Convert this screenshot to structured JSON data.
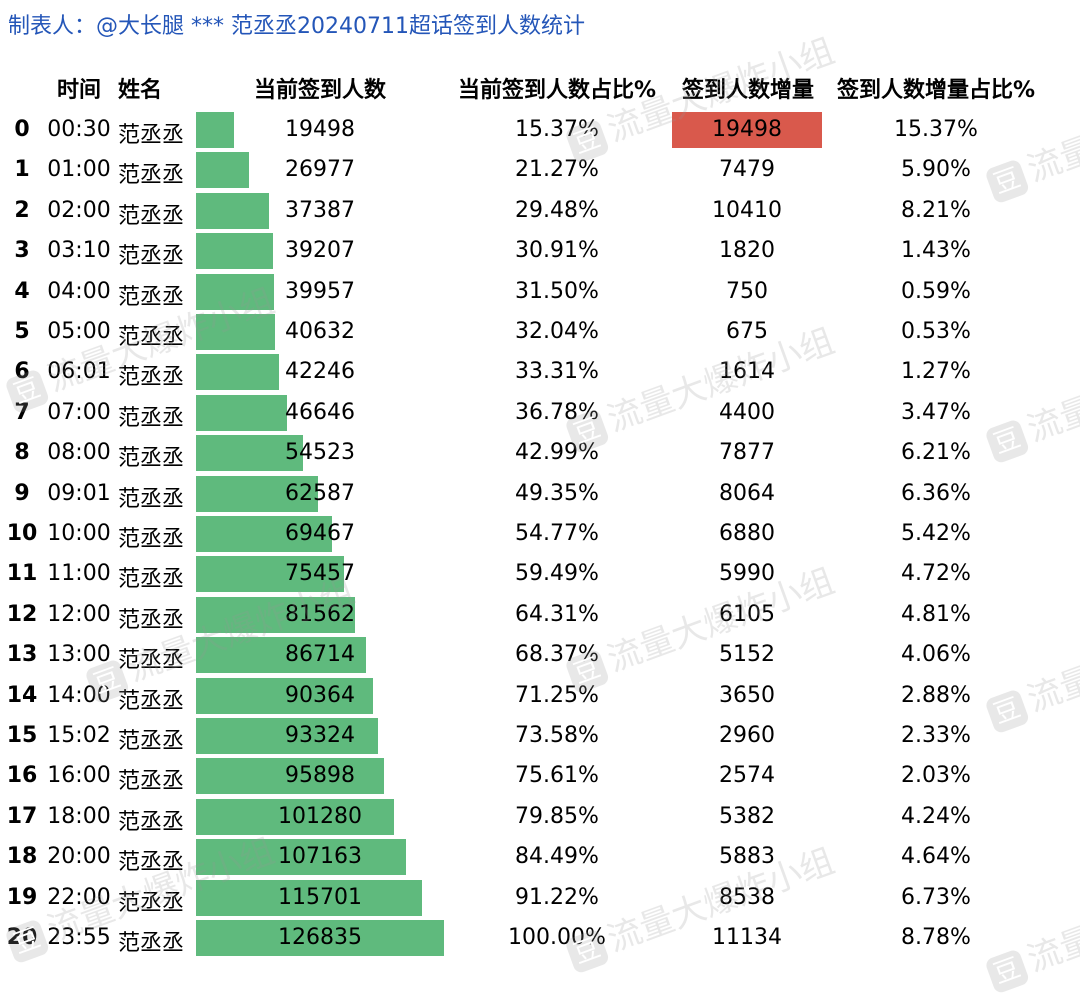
{
  "title": "制表人：@大长腿 *** 范丞丞20240711超话签到人数统计",
  "headers": {
    "time": "时间",
    "name": "姓名",
    "current": "当前签到人数",
    "current_pct": "当前签到人数占比%",
    "increase": "签到人数增量",
    "increase_pct": "签到人数增量占比%"
  },
  "watermark": {
    "text": "流量大爆炸小组",
    "icon_char": "豆",
    "icon": "douban-icon"
  },
  "colors": {
    "bar": "#5fba7d",
    "highlight": "#d9594c",
    "title": "#2456b8"
  },
  "rows": [
    {
      "idx": "0",
      "time": "00:30",
      "name": "范丞丞",
      "current": "19498",
      "current_pct": "15.37%",
      "increase": "19498",
      "increase_pct": "15.37%"
    },
    {
      "idx": "1",
      "time": "01:00",
      "name": "范丞丞",
      "current": "26977",
      "current_pct": "21.27%",
      "increase": "7479",
      "increase_pct": "5.90%"
    },
    {
      "idx": "2",
      "time": "02:00",
      "name": "范丞丞",
      "current": "37387",
      "current_pct": "29.48%",
      "increase": "10410",
      "increase_pct": "8.21%"
    },
    {
      "idx": "3",
      "time": "03:10",
      "name": "范丞丞",
      "current": "39207",
      "current_pct": "30.91%",
      "increase": "1820",
      "increase_pct": "1.43%"
    },
    {
      "idx": "4",
      "time": "04:00",
      "name": "范丞丞",
      "current": "39957",
      "current_pct": "31.50%",
      "increase": "750",
      "increase_pct": "0.59%"
    },
    {
      "idx": "5",
      "time": "05:00",
      "name": "范丞丞",
      "current": "40632",
      "current_pct": "32.04%",
      "increase": "675",
      "increase_pct": "0.53%"
    },
    {
      "idx": "6",
      "time": "06:01",
      "name": "范丞丞",
      "current": "42246",
      "current_pct": "33.31%",
      "increase": "1614",
      "increase_pct": "1.27%"
    },
    {
      "idx": "7",
      "time": "07:00",
      "name": "范丞丞",
      "current": "46646",
      "current_pct": "36.78%",
      "increase": "4400",
      "increase_pct": "3.47%"
    },
    {
      "idx": "8",
      "time": "08:00",
      "name": "范丞丞",
      "current": "54523",
      "current_pct": "42.99%",
      "increase": "7877",
      "increase_pct": "6.21%"
    },
    {
      "idx": "9",
      "time": "09:01",
      "name": "范丞丞",
      "current": "62587",
      "current_pct": "49.35%",
      "increase": "8064",
      "increase_pct": "6.36%"
    },
    {
      "idx": "10",
      "time": "10:00",
      "name": "范丞丞",
      "current": "69467",
      "current_pct": "54.77%",
      "increase": "6880",
      "increase_pct": "5.42%"
    },
    {
      "idx": "11",
      "time": "11:00",
      "name": "范丞丞",
      "current": "75457",
      "current_pct": "59.49%",
      "increase": "5990",
      "increase_pct": "4.72%"
    },
    {
      "idx": "12",
      "time": "12:00",
      "name": "范丞丞",
      "current": "81562",
      "current_pct": "64.31%",
      "increase": "6105",
      "increase_pct": "4.81%"
    },
    {
      "idx": "13",
      "time": "13:00",
      "name": "范丞丞",
      "current": "86714",
      "current_pct": "68.37%",
      "increase": "5152",
      "increase_pct": "4.06%"
    },
    {
      "idx": "14",
      "time": "14:00",
      "name": "范丞丞",
      "current": "90364",
      "current_pct": "71.25%",
      "increase": "3650",
      "increase_pct": "2.88%"
    },
    {
      "idx": "15",
      "time": "15:02",
      "name": "范丞丞",
      "current": "93324",
      "current_pct": "73.58%",
      "increase": "2960",
      "increase_pct": "2.33%"
    },
    {
      "idx": "16",
      "time": "16:00",
      "name": "范丞丞",
      "current": "95898",
      "current_pct": "75.61%",
      "increase": "2574",
      "increase_pct": "2.03%"
    },
    {
      "idx": "17",
      "time": "18:00",
      "name": "范丞丞",
      "current": "101280",
      "current_pct": "79.85%",
      "increase": "5382",
      "increase_pct": "4.24%"
    },
    {
      "idx": "18",
      "time": "20:00",
      "name": "范丞丞",
      "current": "107163",
      "current_pct": "84.49%",
      "increase": "5883",
      "increase_pct": "4.64%"
    },
    {
      "idx": "19",
      "time": "22:00",
      "name": "范丞丞",
      "current": "115701",
      "current_pct": "91.22%",
      "increase": "8538",
      "increase_pct": "6.73%"
    },
    {
      "idx": "20",
      "time": "23:55",
      "name": "范丞丞",
      "current": "126835",
      "current_pct": "100.00%",
      "increase": "11134",
      "increase_pct": "8.78%"
    }
  ],
  "chart_data": {
    "type": "table",
    "title": "制表人：@大长腿 *** 范丞丞20240711超话签到人数统计",
    "categories": [
      "00:30",
      "01:00",
      "02:00",
      "03:10",
      "04:00",
      "05:00",
      "06:01",
      "07:00",
      "08:00",
      "09:01",
      "10:00",
      "11:00",
      "12:00",
      "13:00",
      "14:00",
      "15:02",
      "16:00",
      "18:00",
      "20:00",
      "22:00",
      "23:55"
    ],
    "series": [
      {
        "name": "当前签到人数",
        "values": [
          19498,
          26977,
          37387,
          39207,
          39957,
          40632,
          42246,
          46646,
          54523,
          62587,
          69467,
          75457,
          81562,
          86714,
          90364,
          93324,
          95898,
          101280,
          107163,
          115701,
          126835
        ]
      },
      {
        "name": "当前签到人数占比%",
        "values": [
          15.37,
          21.27,
          29.48,
          30.91,
          31.5,
          32.04,
          33.31,
          36.78,
          42.99,
          49.35,
          54.77,
          59.49,
          64.31,
          68.37,
          71.25,
          73.58,
          75.61,
          79.85,
          84.49,
          91.22,
          100.0
        ]
      },
      {
        "name": "签到人数增量",
        "values": [
          19498,
          7479,
          10410,
          1820,
          750,
          675,
          1614,
          4400,
          7877,
          8064,
          6880,
          5990,
          6105,
          5152,
          3650,
          2960,
          2574,
          5382,
          5883,
          8538,
          11134
        ]
      },
      {
        "name": "签到人数增量占比%",
        "values": [
          15.37,
          5.9,
          8.21,
          1.43,
          0.59,
          0.53,
          1.27,
          3.47,
          6.21,
          6.36,
          5.42,
          4.72,
          4.81,
          4.06,
          2.88,
          2.33,
          2.03,
          4.24,
          4.64,
          6.73,
          8.78
        ]
      }
    ],
    "bar_max": 126835,
    "highlighted": {
      "series": "签到人数增量",
      "category": "00:30"
    }
  }
}
